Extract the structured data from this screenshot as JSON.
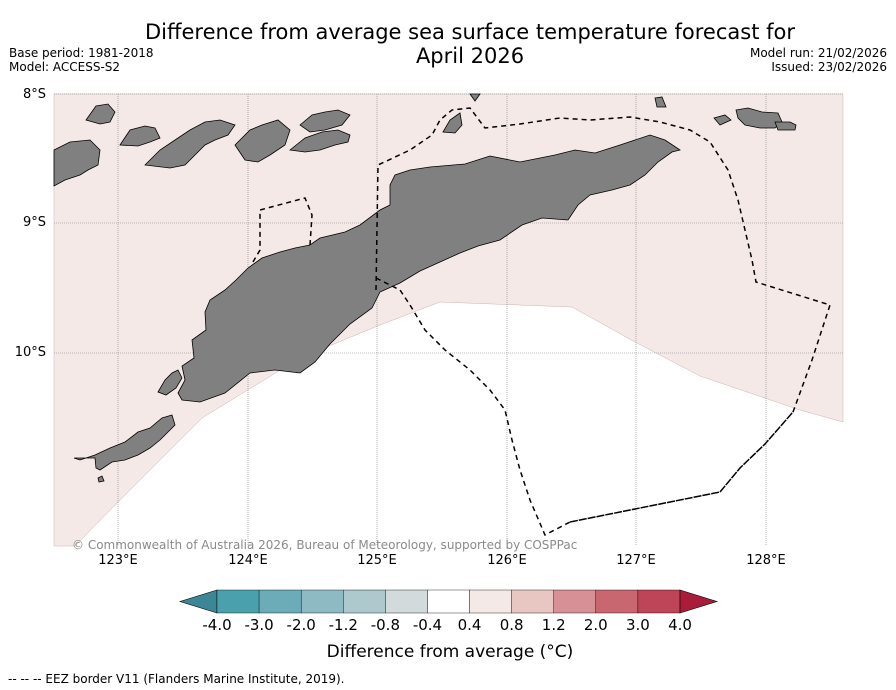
{
  "title": {
    "line1": "Difference from average sea surface temperature forecast for",
    "line2": "April 2026"
  },
  "meta": {
    "base_period": "Base period: 1981-2018",
    "model": "Model: ACCESS-S2",
    "model_run": "Model run: 21/02/2026",
    "issued": "Issued: 23/02/2026"
  },
  "map": {
    "lat_labels": [
      "8°S",
      "9°S",
      "10°S"
    ],
    "lon_labels": [
      "123°E",
      "124°E",
      "125°E",
      "126°E",
      "127°E",
      "128°E"
    ],
    "copyright": "© Commonwealth of Australia 2026, Bureau of Meteorology, supported by COSPPac",
    "colors": {
      "ocean_anomaly_04_08": "#f5e9e7",
      "ocean_anomaly_near_zero": "#ffffff",
      "land": "#808080",
      "land_outline": "#000000",
      "eez_border": "#000000"
    }
  },
  "colorbar": {
    "ticks": [
      "-4.0",
      "-3.0",
      "-2.0",
      "-1.2",
      "-0.8",
      "-0.4",
      "0.4",
      "0.8",
      "1.2",
      "2.0",
      "3.0",
      "4.0"
    ],
    "colors": [
      "#3c8795",
      "#4aa0ad",
      "#6cacb8",
      "#8ebac4",
      "#aec9cd",
      "#d3dadb",
      "#ffffff",
      "#f5e9e7",
      "#e8c6c1",
      "#d69096",
      "#c96771",
      "#be4457",
      "#a91c3a"
    ],
    "label": "Difference from average (°C)"
  },
  "footer": {
    "eez_note": "--  --  -- EEZ border V11 (Flanders Marine Institute, 2019)."
  }
}
